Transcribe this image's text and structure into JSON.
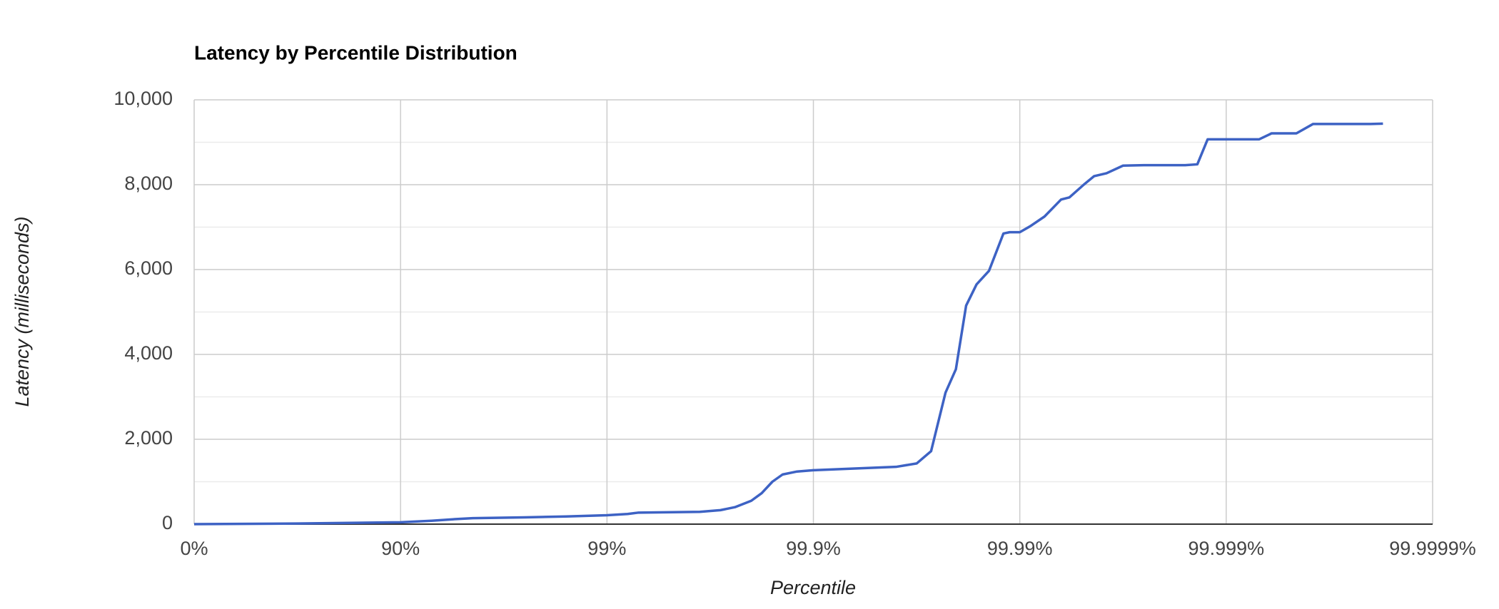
{
  "chart_data": {
    "type": "line",
    "title": "Latency by Percentile Distribution",
    "x_label": "Percentile",
    "y_label": "Latency (milliseconds)",
    "xscale": "nines",
    "xlim": [
      0,
      99.9999
    ],
    "xticks": [
      {
        "value": 0,
        "label": "0%"
      },
      {
        "value": 90,
        "label": "90%"
      },
      {
        "value": 99,
        "label": "99%"
      },
      {
        "value": 99.9,
        "label": "99.9%"
      },
      {
        "value": 99.99,
        "label": "99.99%"
      },
      {
        "value": 99.999,
        "label": "99.999%"
      },
      {
        "value": 99.9999,
        "label": "99.9999%"
      }
    ],
    "ylim": [
      0,
      10000
    ],
    "yticks": [
      0,
      {
        "value": 2000,
        "label": "2,000"
      },
      {
        "value": 4000,
        "label": "4,000"
      },
      {
        "value": 6000,
        "label": "6,000"
      },
      {
        "value": 8000,
        "label": "8,000"
      },
      {
        "value": 10000,
        "label": "10,000"
      }
    ],
    "grid": true,
    "minor_grid": true,
    "x": [
      0,
      68.38,
      90,
      92.92,
      94.63,
      95.53,
      97.49,
      98.42,
      99,
      99.206,
      99.292,
      99.645,
      99.718,
      99.76,
      99.8,
      99.822,
      99.842,
      99.859,
      99.88,
      99.9,
      99.9369,
      99.9602,
      99.9684,
      99.9731,
      99.9771,
      99.9796,
      99.9818,
      99.9838,
      99.9859,
      99.988,
      99.9888,
      99.99,
      99.99109,
      99.99241,
      99.99369,
      99.99425,
      99.9951,
      99.99563,
      99.9962,
      99.99684,
      99.99749,
      99.99842,
      99.99862,
      99.99877,
      99.999308,
      99.999397,
      99.999543,
      99.99962,
      99.9998,
      99.999826
    ],
    "series": [
      {
        "name": "Latency",
        "color": "#3d62c4",
        "values": [
          0,
          15,
          45,
          80,
          120,
          140,
          160,
          180,
          210,
          240,
          270,
          290,
          330,
          400,
          550,
          730,
          1000,
          1170,
          1240,
          1270,
          1310,
          1350,
          1430,
          1720,
          3100,
          3650,
          5150,
          5650,
          5970,
          6850,
          6880,
          6880,
          7020,
          7250,
          7650,
          7700,
          8000,
          8200,
          8270,
          8450,
          8460,
          8460,
          8480,
          9070,
          9070,
          9210,
          9210,
          9430,
          9430,
          9440
        ]
      }
    ]
  }
}
